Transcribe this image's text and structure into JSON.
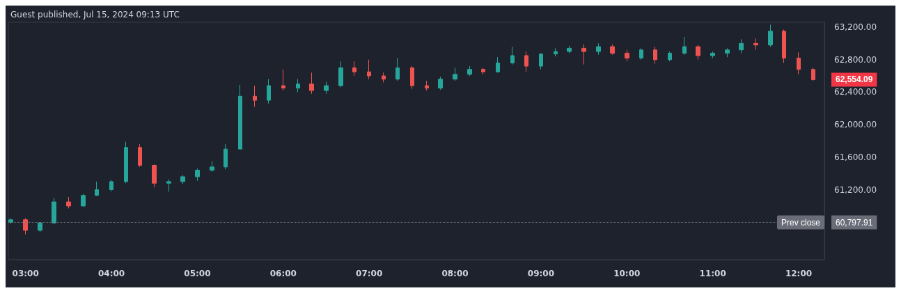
{
  "chart_data": {
    "type": "candlestick",
    "title": "Guest published, Jul 15, 2024 09:13 UTC",
    "x": [
      2.83,
      3,
      3.17,
      3.33,
      3.5,
      3.67,
      3.83,
      4,
      4.17,
      4.33,
      4.5,
      4.67,
      4.83,
      5,
      5.17,
      5.33,
      5.5,
      5.67,
      5.83,
      6,
      6.17,
      6.33,
      6.5,
      6.67,
      6.83,
      7,
      7.17,
      7.33,
      7.5,
      7.67,
      7.83,
      8,
      8.17,
      8.33,
      8.5,
      8.67,
      8.83,
      9,
      9.17,
      9.33,
      9.5,
      9.67,
      9.83,
      10,
      10.17,
      10.33,
      10.5,
      10.67,
      10.83,
      11,
      11.17,
      11.33,
      11.5,
      11.67,
      11.83,
      12,
      12.17
    ],
    "ohlc": [
      [
        60800,
        60850,
        60780,
        60830
      ],
      [
        60830,
        60850,
        60650,
        60700
      ],
      [
        60700,
        60800,
        60680,
        60790
      ],
      [
        60790,
        61100,
        60780,
        61050
      ],
      [
        61050,
        61110,
        60970,
        61000
      ],
      [
        61000,
        61150,
        60990,
        61130
      ],
      [
        61130,
        61300,
        61120,
        61200
      ],
      [
        61200,
        61320,
        61180,
        61300
      ],
      [
        61300,
        61790,
        61280,
        61720
      ],
      [
        61720,
        61760,
        61480,
        61500
      ],
      [
        61500,
        61510,
        61230,
        61280
      ],
      [
        61280,
        61330,
        61175,
        61300
      ],
      [
        61300,
        61380,
        61270,
        61360
      ],
      [
        61360,
        61460,
        61310,
        61440
      ],
      [
        61440,
        61550,
        61420,
        61480
      ],
      [
        61480,
        61760,
        61450,
        61700
      ],
      [
        61700,
        62490,
        61700,
        62350
      ],
      [
        62350,
        62480,
        62220,
        62300
      ],
      [
        62300,
        62560,
        62260,
        62480
      ],
      [
        62480,
        62680,
        62420,
        62450
      ],
      [
        62450,
        62560,
        62400,
        62500
      ],
      [
        62500,
        62640,
        62380,
        62420
      ],
      [
        62420,
        62530,
        62380,
        62480
      ],
      [
        62480,
        62780,
        62460,
        62700
      ],
      [
        62700,
        62780,
        62600,
        62650
      ],
      [
        62650,
        62800,
        62560,
        62600
      ],
      [
        62600,
        62640,
        62520,
        62560
      ],
      [
        62560,
        62820,
        62540,
        62700
      ],
      [
        62700,
        62720,
        62440,
        62480
      ],
      [
        62480,
        62540,
        62420,
        62450
      ],
      [
        62450,
        62590,
        62430,
        62560
      ],
      [
        62560,
        62700,
        62540,
        62620
      ],
      [
        62620,
        62720,
        62600,
        62680
      ],
      [
        62680,
        62700,
        62620,
        62650
      ],
      [
        62650,
        62830,
        62640,
        62760
      ],
      [
        62760,
        62960,
        62740,
        62850
      ],
      [
        62850,
        62900,
        62650,
        62720
      ],
      [
        62720,
        62880,
        62680,
        62870
      ],
      [
        62870,
        62940,
        62840,
        62900
      ],
      [
        62900,
        62970,
        62880,
        62940
      ],
      [
        62940,
        62990,
        62740,
        62900
      ],
      [
        62900,
        63000,
        62860,
        62960
      ],
      [
        62960,
        62990,
        62860,
        62880
      ],
      [
        62880,
        62920,
        62780,
        62820
      ],
      [
        62820,
        62940,
        62800,
        62920
      ],
      [
        62920,
        62960,
        62750,
        62800
      ],
      [
        62800,
        62900,
        62780,
        62880
      ],
      [
        62880,
        63080,
        62860,
        62960
      ],
      [
        62960,
        62980,
        62800,
        62850
      ],
      [
        62850,
        62900,
        62820,
        62880
      ],
      [
        62880,
        62940,
        62830,
        62920
      ],
      [
        62920,
        63050,
        62880,
        63000
      ],
      [
        63000,
        63060,
        62920,
        62980
      ],
      [
        62980,
        63230,
        62960,
        63150
      ],
      [
        63150,
        63170,
        62760,
        62820
      ],
      [
        62820,
        62890,
        62620,
        62680
      ],
      [
        62680,
        62700,
        62540,
        62554.09
      ]
    ],
    "xlim": [
      2.8,
      12.3
    ],
    "xticks": [
      {
        "value": 3,
        "label": "03:00"
      },
      {
        "value": 4,
        "label": "04:00"
      },
      {
        "value": 5,
        "label": "05:00"
      },
      {
        "value": 6,
        "label": "06:00"
      },
      {
        "value": 7,
        "label": "07:00"
      },
      {
        "value": 8,
        "label": "08:00"
      },
      {
        "value": 9,
        "label": "09:00"
      },
      {
        "value": 10,
        "label": "10:00"
      },
      {
        "value": 11,
        "label": "11:00"
      },
      {
        "value": 12,
        "label": "12:00"
      }
    ],
    "ylim": [
      60340,
      63260
    ],
    "yticks": [
      {
        "value": 61200,
        "label": "61,200.00"
      },
      {
        "value": 61600,
        "label": "61,600.00"
      },
      {
        "value": 62000,
        "label": "62,000.00"
      },
      {
        "value": 62400,
        "label": "62,400.00"
      },
      {
        "value": 62800,
        "label": "62,800.00"
      },
      {
        "value": 63200,
        "label": "63,200.00"
      }
    ],
    "ref_lines": [
      {
        "axis": "y",
        "value": 60797.91,
        "label": "Prev close",
        "line_style": "dotted"
      }
    ],
    "annotations": [
      {
        "text": "62,554.09",
        "x": 12.17,
        "y": 62554.09
      },
      "60,797.91"
    ],
    "grid": false
  }
}
